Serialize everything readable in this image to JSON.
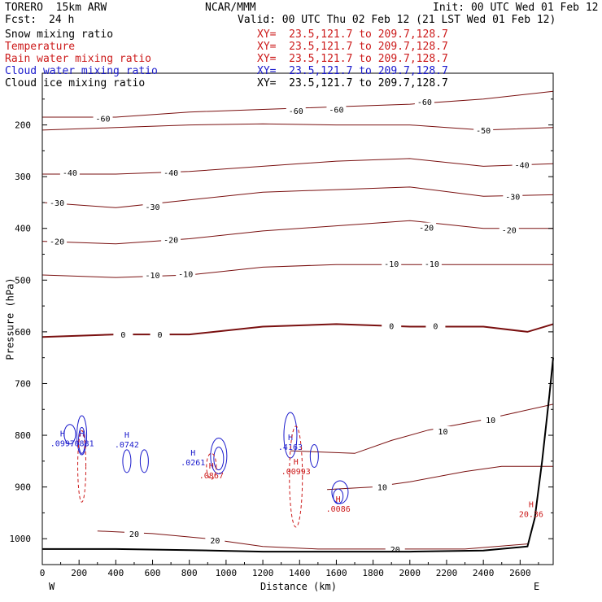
{
  "header": {
    "model": "TORERO  15km ARW",
    "center": "NCAR/MMM",
    "init": "Init: 00 UTC Wed 01 Feb 12",
    "fcst_label": "Fcst:",
    "fcst_value": "24 h",
    "valid": "Valid: 00 UTC Thu 02 Feb 12 (21 LST Wed 01 Feb 12)"
  },
  "legend": [
    {
      "name": "Snow mixing ratio",
      "xy": "XY=  23.5,121.7 to 209.7,128.7",
      "color": "#000000"
    },
    {
      "name": "Temperature",
      "xy": "XY=  23.5,121.7 to 209.7,128.7",
      "color": "#cc1a1a"
    },
    {
      "name": "Rain water mixing ratio",
      "xy": "XY=  23.5,121.7 to 209.7,128.7",
      "color": "#cc1a1a"
    },
    {
      "name": "Cloud water mixing ratio",
      "xy": "XY=  23.5,121.7 to 209.7,128.7",
      "color": "#1a1acc"
    },
    {
      "name": "Cloud ice mixing ratio",
      "xy": "XY=  23.5,121.7 to 209.7,128.7",
      "color": "#000000"
    }
  ],
  "chart_data": {
    "type": "contour cross-section",
    "xlabel": "Distance (km)",
    "ylabel": "Pressure (hPa)",
    "xlim": [
      0,
      2780
    ],
    "ylim": [
      1050,
      100
    ],
    "x_ticks": [
      0,
      200,
      400,
      600,
      800,
      1000,
      1200,
      1400,
      1600,
      1800,
      2000,
      2200,
      2400,
      2600
    ],
    "y_ticks": [
      200,
      300,
      400,
      500,
      600,
      700,
      800,
      900,
      1000
    ],
    "x_end_labels": {
      "left": "W",
      "right": "E"
    },
    "isotherms": [
      {
        "value": -60,
        "points": [
          [
            0,
            185
          ],
          [
            400,
            185
          ],
          [
            800,
            175
          ],
          [
            1200,
            170
          ],
          [
            1600,
            165
          ],
          [
            2000,
            160
          ],
          [
            2400,
            150
          ],
          [
            2780,
            135
          ]
        ],
        "labels": [
          [
            330,
            187
          ],
          [
            1380,
            172
          ],
          [
            1600,
            170
          ],
          [
            2080,
            155
          ]
        ]
      },
      {
        "value": -50,
        "points": [
          [
            0,
            210
          ],
          [
            400,
            205
          ],
          [
            800,
            200
          ],
          [
            1200,
            198
          ],
          [
            1600,
            200
          ],
          [
            2000,
            200
          ],
          [
            2400,
            210
          ],
          [
            2780,
            205
          ]
        ],
        "labels": [
          [
            2400,
            210
          ]
        ]
      },
      {
        "value": -40,
        "points": [
          [
            0,
            295
          ],
          [
            400,
            295
          ],
          [
            800,
            290
          ],
          [
            1200,
            280
          ],
          [
            1600,
            270
          ],
          [
            2000,
            265
          ],
          [
            2400,
            280
          ],
          [
            2780,
            275
          ]
        ],
        "labels": [
          [
            150,
            292
          ],
          [
            700,
            292
          ],
          [
            2610,
            277
          ]
        ]
      },
      {
        "value": -30,
        "points": [
          [
            0,
            350
          ],
          [
            400,
            360
          ],
          [
            800,
            345
          ],
          [
            1200,
            330
          ],
          [
            1600,
            325
          ],
          [
            2000,
            320
          ],
          [
            2400,
            338
          ],
          [
            2780,
            335
          ]
        ],
        "labels": [
          [
            80,
            350
          ],
          [
            600,
            358
          ],
          [
            2560,
            338
          ]
        ]
      },
      {
        "value": -20,
        "points": [
          [
            0,
            425
          ],
          [
            400,
            430
          ],
          [
            800,
            420
          ],
          [
            1200,
            405
          ],
          [
            1600,
            395
          ],
          [
            2000,
            385
          ],
          [
            2400,
            400
          ],
          [
            2780,
            400
          ]
        ],
        "labels": [
          [
            80,
            425
          ],
          [
            700,
            422
          ],
          [
            2090,
            398
          ],
          [
            2540,
            403
          ]
        ]
      },
      {
        "value": -10,
        "points": [
          [
            0,
            490
          ],
          [
            400,
            495
          ],
          [
            800,
            490
          ],
          [
            1200,
            475
          ],
          [
            1600,
            470
          ],
          [
            2000,
            470
          ],
          [
            2400,
            470
          ],
          [
            2780,
            470
          ]
        ],
        "labels": [
          [
            600,
            490
          ],
          [
            780,
            488
          ],
          [
            1900,
            468
          ],
          [
            2120,
            468
          ]
        ]
      },
      {
        "value": 0,
        "points": [
          [
            0,
            610
          ],
          [
            400,
            605
          ],
          [
            800,
            605
          ],
          [
            1200,
            590
          ],
          [
            1600,
            585
          ],
          [
            2000,
            590
          ],
          [
            2400,
            590
          ],
          [
            2640,
            600
          ],
          [
            2780,
            585
          ]
        ],
        "labels": [
          [
            440,
            605
          ],
          [
            640,
            605
          ],
          [
            1900,
            588
          ],
          [
            2140,
            588
          ]
        ]
      },
      {
        "value": 10,
        "points": [
          [
            1350,
            830
          ],
          [
            1700,
            835
          ],
          [
            1900,
            810
          ],
          [
            2100,
            790
          ],
          [
            2400,
            770
          ],
          [
            2780,
            740
          ]
        ],
        "labels": [
          [
            2180,
            792
          ],
          [
            2440,
            770
          ]
        ]
      },
      {
        "value": 10,
        "points": [
          [
            1550,
            905
          ],
          [
            1800,
            900
          ],
          [
            2000,
            890
          ],
          [
            2300,
            870
          ],
          [
            2500,
            860
          ],
          [
            2780,
            860
          ]
        ],
        "labels": [
          [
            1850,
            900
          ]
        ]
      },
      {
        "value": 20,
        "points": [
          [
            300,
            985
          ],
          [
            600,
            990
          ],
          [
            900,
            1000
          ],
          [
            1200,
            1015
          ],
          [
            1500,
            1020
          ],
          [
            1900,
            1020
          ],
          [
            2300,
            1020
          ],
          [
            2640,
            1010
          ]
        ],
        "labels": [
          [
            500,
            990
          ],
          [
            940,
            1003
          ],
          [
            1920,
            1020
          ]
        ]
      }
    ],
    "highs": [
      {
        "x": 110,
        "p": 818,
        "value": ".0997",
        "color": "#1a1acc"
      },
      {
        "x": 215,
        "p": 818,
        "value": ".0881",
        "color": "#1a1acc"
      },
      {
        "x": 460,
        "p": 820,
        "value": ".0742",
        "color": "#1a1acc"
      },
      {
        "x": 820,
        "p": 855,
        "value": ".0261",
        "color": "#1a1acc"
      },
      {
        "x": 920,
        "p": 880,
        "value": ".0867",
        "color": "#cc1a1a"
      },
      {
        "x": 1350,
        "p": 825,
        "value": ".4163",
        "color": "#1a1acc"
      },
      {
        "x": 1380,
        "p": 872,
        "value": ".00993",
        "color": "#cc1a1a"
      },
      {
        "x": 1610,
        "p": 945,
        "value": ".0086",
        "color": "#cc1a1a"
      },
      {
        "x": 2660,
        "p": 955,
        "value": "20.36",
        "color": "#cc1a1a"
      }
    ],
    "ground": [
      [
        0,
        1020
      ],
      [
        400,
        1020
      ],
      [
        800,
        1022
      ],
      [
        1200,
        1025
      ],
      [
        1600,
        1025
      ],
      [
        2000,
        1025
      ],
      [
        2400,
        1023
      ],
      [
        2640,
        1015
      ],
      [
        2680,
        960
      ],
      [
        2720,
        850
      ],
      [
        2760,
        720
      ],
      [
        2780,
        650
      ]
    ]
  }
}
